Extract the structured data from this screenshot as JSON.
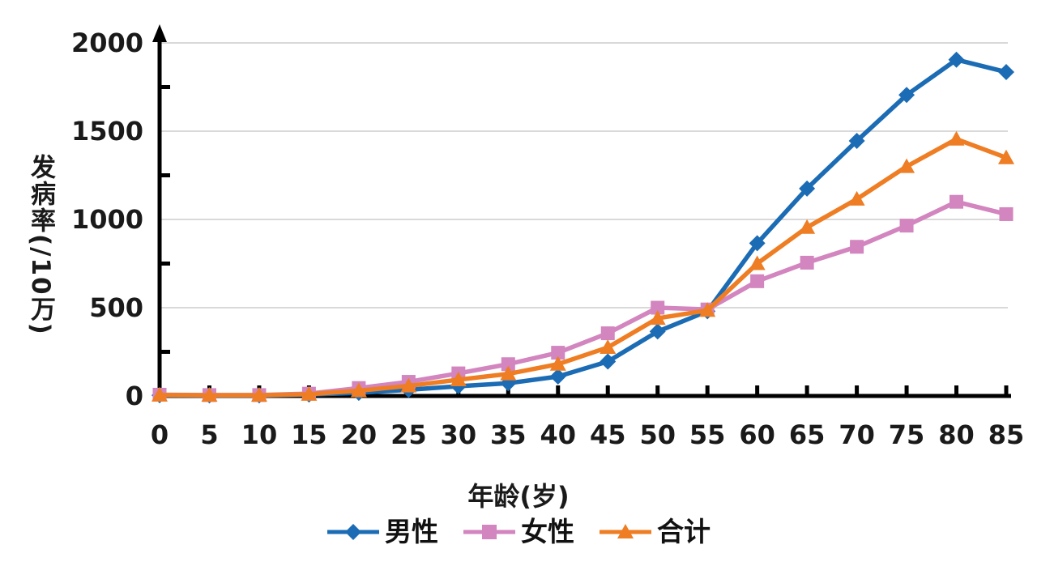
{
  "chart_data": {
    "type": "line",
    "title": "",
    "xlabel": "年龄(岁)",
    "ylabel": "发病率(/10万)",
    "x": [
      0,
      5,
      10,
      15,
      20,
      25,
      30,
      35,
      40,
      45,
      50,
      55,
      60,
      65,
      70,
      75,
      80,
      85
    ],
    "series": [
      {
        "id": "male",
        "name": "男性",
        "marker": "diamond",
        "color": "#1B6CB4",
        "values": [
          4,
          3,
          3,
          8,
          18,
          35,
          55,
          72,
          110,
          195,
          365,
          480,
          865,
          1175,
          1445,
          1705,
          1905,
          1835
        ]
      },
      {
        "id": "female",
        "name": "女性",
        "marker": "square",
        "color": "#D285BE",
        "values": [
          7,
          5,
          5,
          13,
          45,
          80,
          128,
          180,
          245,
          355,
          500,
          490,
          650,
          755,
          845,
          965,
          1100,
          1030
        ]
      },
      {
        "id": "total",
        "name": "合计",
        "marker": "triangle",
        "color": "#EE7D23",
        "values": [
          5,
          4,
          4,
          10,
          30,
          57,
          92,
          125,
          180,
          275,
          440,
          485,
          750,
          955,
          1115,
          1300,
          1455,
          1350
        ]
      }
    ],
    "ylim": [
      0,
      2000
    ],
    "yticks": [
      0,
      500,
      1000,
      1500,
      2000
    ],
    "y_minor_ticks": [
      250,
      750,
      1250,
      1750
    ],
    "grid": "horizontal-major",
    "legend_position": "bottom-center",
    "axis_arrow": "y-top",
    "colors": {
      "axis": "#000000",
      "gridline": "#d9d9d9",
      "text": "#1a1a1a",
      "background": "#ffffff"
    }
  }
}
